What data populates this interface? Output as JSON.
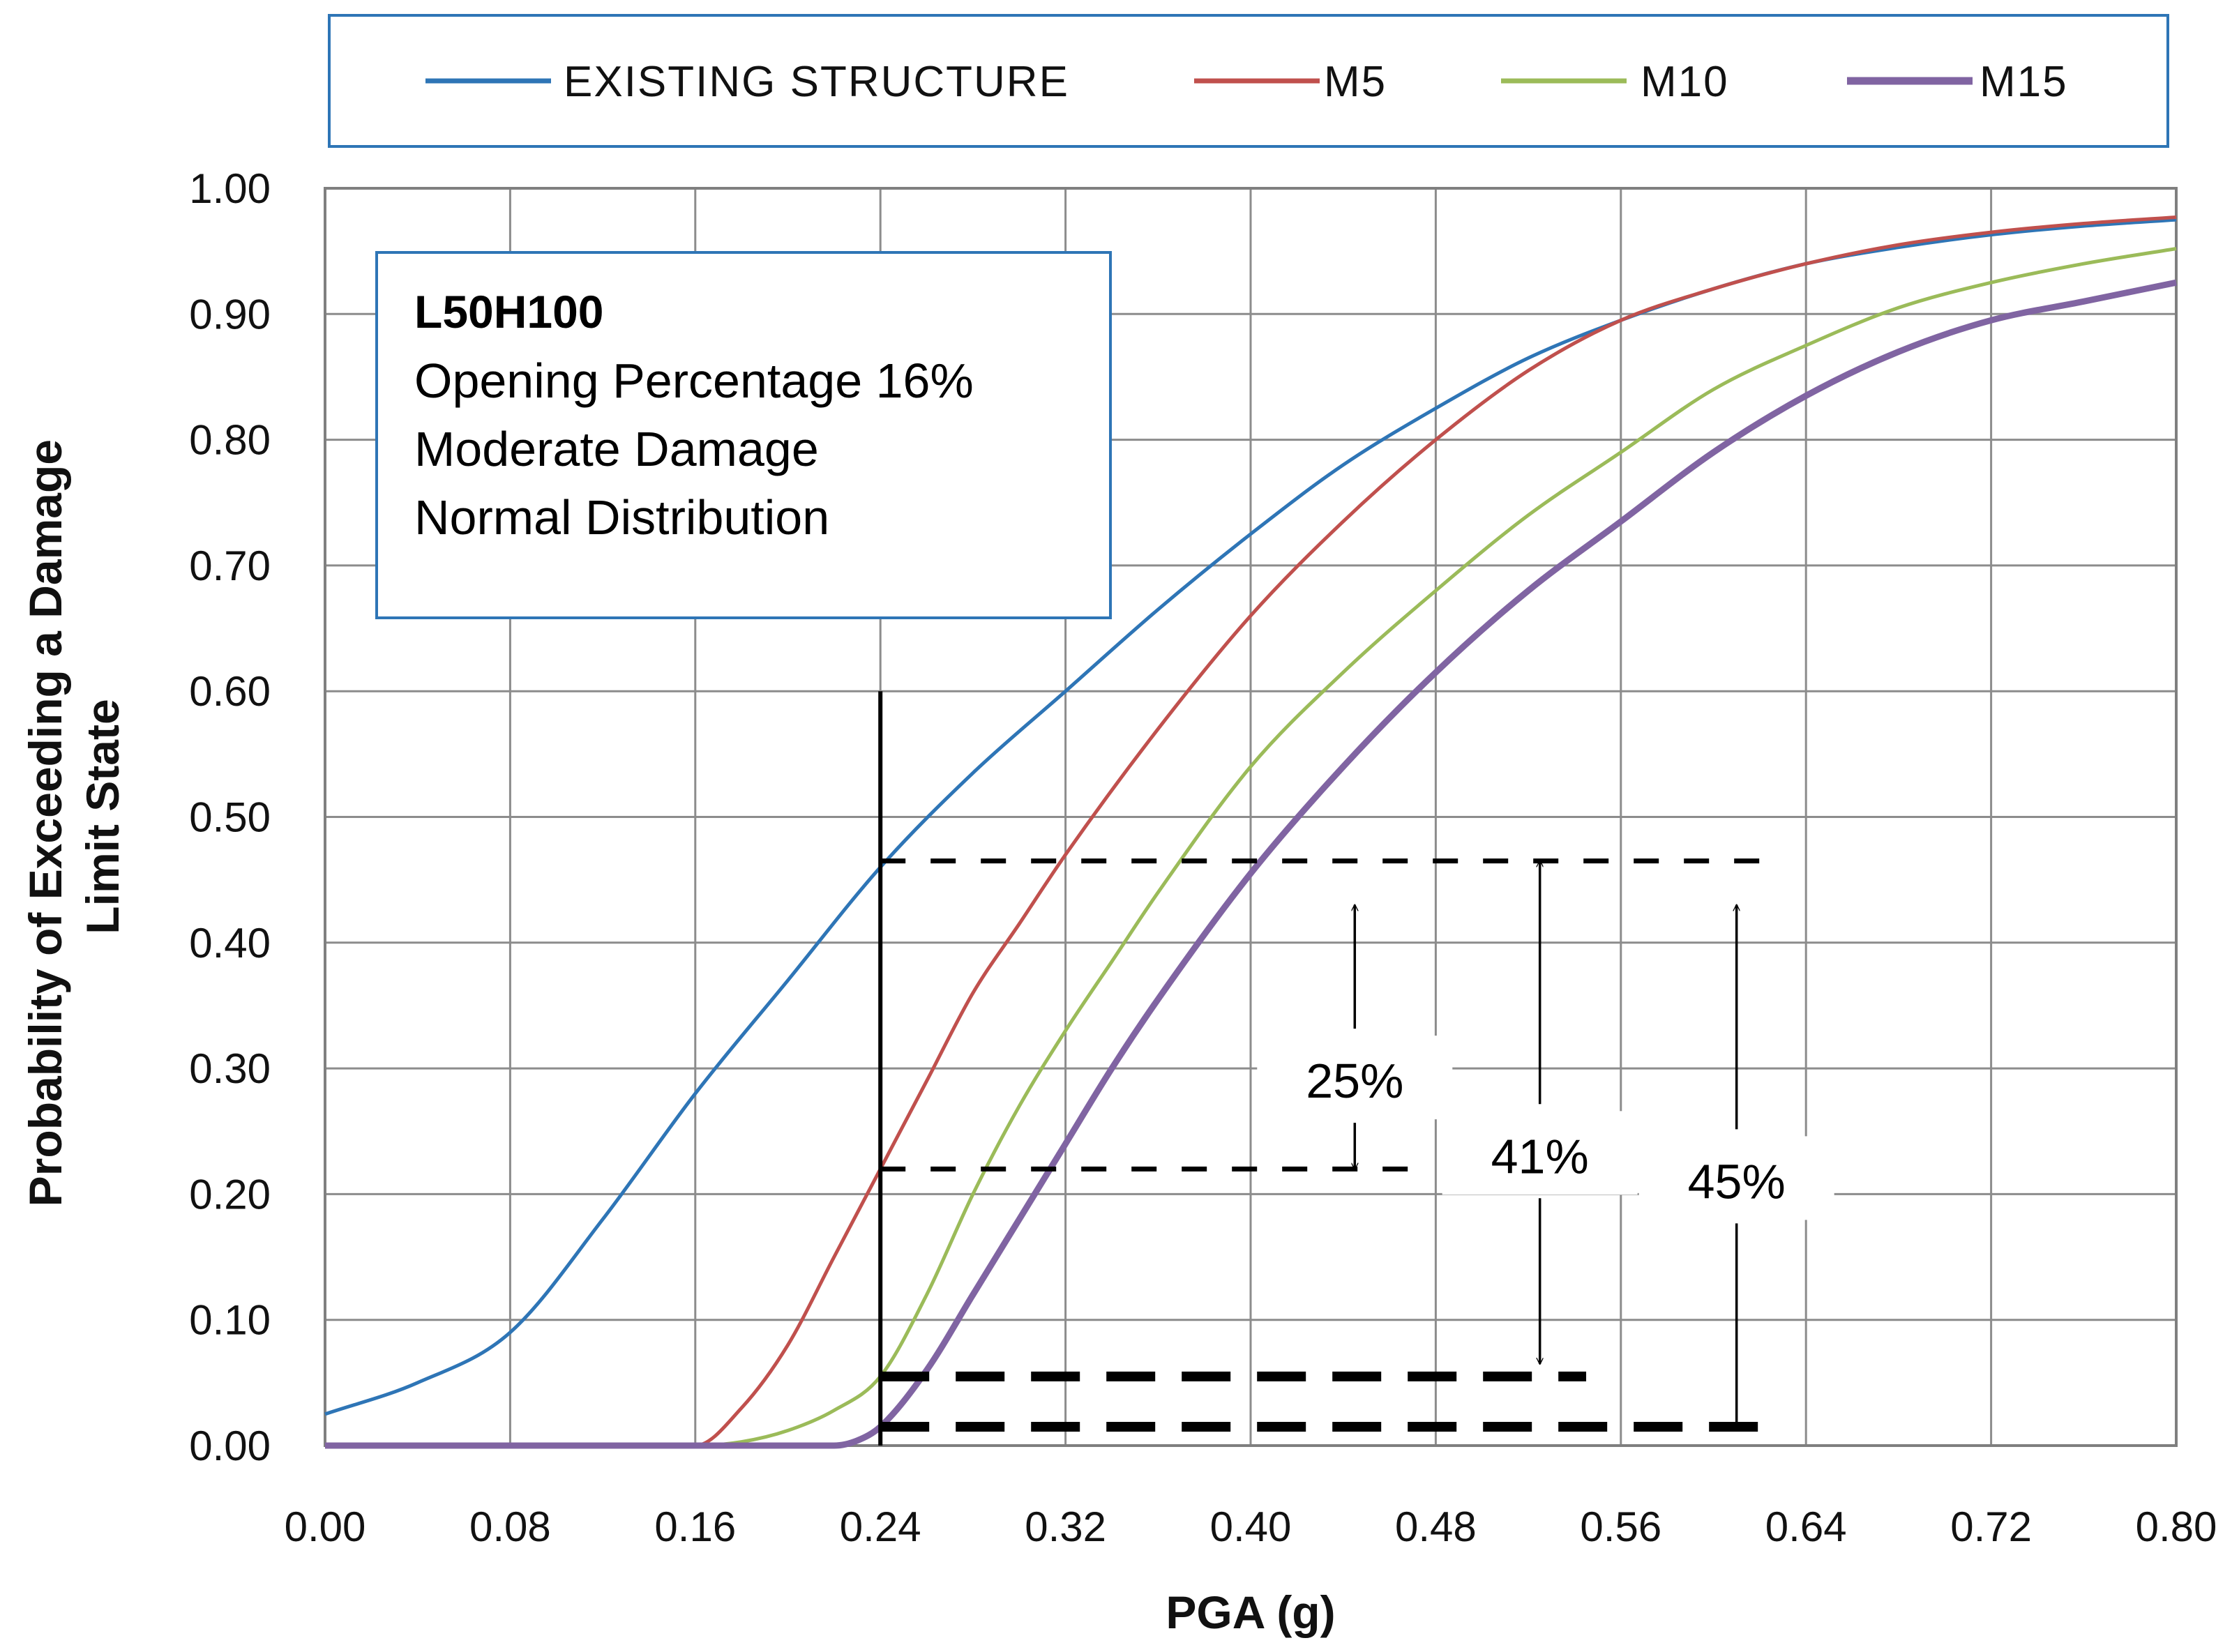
{
  "chart_data": {
    "type": "line",
    "title": "",
    "xlabel": "PGA (g)",
    "ylabel_lines": [
      "Probability of Exceeding a Damage",
      "Limit State"
    ],
    "xlim": [
      0,
      0.8
    ],
    "ylim": [
      0,
      1
    ],
    "x_ticks": [
      "0.00",
      "0.08",
      "0.16",
      "0.24",
      "0.32",
      "0.40",
      "0.48",
      "0.56",
      "0.64",
      "0.72",
      "0.80"
    ],
    "y_ticks": [
      "0.00",
      "0.10",
      "0.20",
      "0.30",
      "0.40",
      "0.50",
      "0.60",
      "0.70",
      "0.80",
      "0.90",
      "1.00"
    ],
    "grid": true,
    "legend_position": "top",
    "series": [
      {
        "name": "EXISTING STRUCTURE",
        "color": "#2E75B6",
        "x": [
          0,
          0.04,
          0.08,
          0.12,
          0.16,
          0.2,
          0.24,
          0.28,
          0.32,
          0.36,
          0.4,
          0.44,
          0.48,
          0.52,
          0.56,
          0.6,
          0.64,
          0.68,
          0.72,
          0.76,
          0.8
        ],
        "y": [
          0.025,
          0.05,
          0.09,
          0.18,
          0.28,
          0.37,
          0.46,
          0.535,
          0.6,
          0.665,
          0.725,
          0.78,
          0.825,
          0.865,
          0.895,
          0.92,
          0.94,
          0.953,
          0.963,
          0.97,
          0.975
        ]
      },
      {
        "name": "M5",
        "color": "#C0504D",
        "x": [
          0,
          0.08,
          0.16,
          0.18,
          0.2,
          0.22,
          0.24,
          0.26,
          0.28,
          0.3,
          0.32,
          0.36,
          0.4,
          0.44,
          0.48,
          0.52,
          0.56,
          0.6,
          0.64,
          0.68,
          0.72,
          0.76,
          0.8
        ],
        "y": [
          0,
          0,
          0,
          0.03,
          0.08,
          0.15,
          0.22,
          0.29,
          0.36,
          0.415,
          0.47,
          0.57,
          0.66,
          0.735,
          0.8,
          0.855,
          0.895,
          0.92,
          0.94,
          0.955,
          0.965,
          0.972,
          0.977
        ]
      },
      {
        "name": "M10",
        "color": "#9BBB59",
        "x": [
          0,
          0.08,
          0.16,
          0.18,
          0.2,
          0.22,
          0.24,
          0.26,
          0.28,
          0.3,
          0.32,
          0.34,
          0.36,
          0.4,
          0.44,
          0.48,
          0.52,
          0.56,
          0.6,
          0.64,
          0.68,
          0.72,
          0.76,
          0.8
        ],
        "y": [
          0,
          0,
          0,
          0.003,
          0.012,
          0.028,
          0.055,
          0.12,
          0.2,
          0.27,
          0.33,
          0.385,
          0.44,
          0.54,
          0.615,
          0.68,
          0.74,
          0.79,
          0.84,
          0.875,
          0.905,
          0.925,
          0.94,
          0.952
        ]
      },
      {
        "name": "M15",
        "color": "#8064A2",
        "x": [
          0,
          0.08,
          0.16,
          0.22,
          0.23,
          0.24,
          0.26,
          0.28,
          0.3,
          0.32,
          0.34,
          0.36,
          0.4,
          0.44,
          0.48,
          0.52,
          0.56,
          0.6,
          0.64,
          0.68,
          0.72,
          0.76,
          0.8
        ],
        "y": [
          0,
          0,
          0,
          0,
          0.004,
          0.015,
          0.06,
          0.12,
          0.18,
          0.24,
          0.3,
          0.355,
          0.455,
          0.54,
          0.615,
          0.68,
          0.735,
          0.79,
          0.835,
          0.87,
          0.895,
          0.91,
          0.925
        ]
      }
    ],
    "annotations": {
      "info_box": [
        "L50H100",
        "Opening Percentage 16%",
        "Moderate Damage",
        "Normal Distribution"
      ],
      "reference_x": 0.24,
      "reference_line_top": 0.6,
      "dashed_levels": [
        {
          "y": 0.465,
          "x_end": 0.625,
          "weight": "normal"
        },
        {
          "y": 0.22,
          "x_end": 0.475,
          "weight": "normal"
        },
        {
          "y": 0.055,
          "x_end": 0.545,
          "weight": "bold"
        },
        {
          "y": 0.015,
          "x_end": 0.625,
          "weight": "bold"
        }
      ],
      "differences": [
        {
          "label": "25%",
          "x": 0.445,
          "y_top": 0.43,
          "y_bottom": 0.22,
          "label_y": 0.29
        },
        {
          "label": "41%",
          "x": 0.525,
          "y_top": 0.465,
          "y_bottom": 0.065,
          "label_y": 0.23
        },
        {
          "label": "45%",
          "x": 0.61,
          "y_top": 0.43,
          "y_bottom": 0.012,
          "label_y": 0.21
        }
      ]
    }
  }
}
